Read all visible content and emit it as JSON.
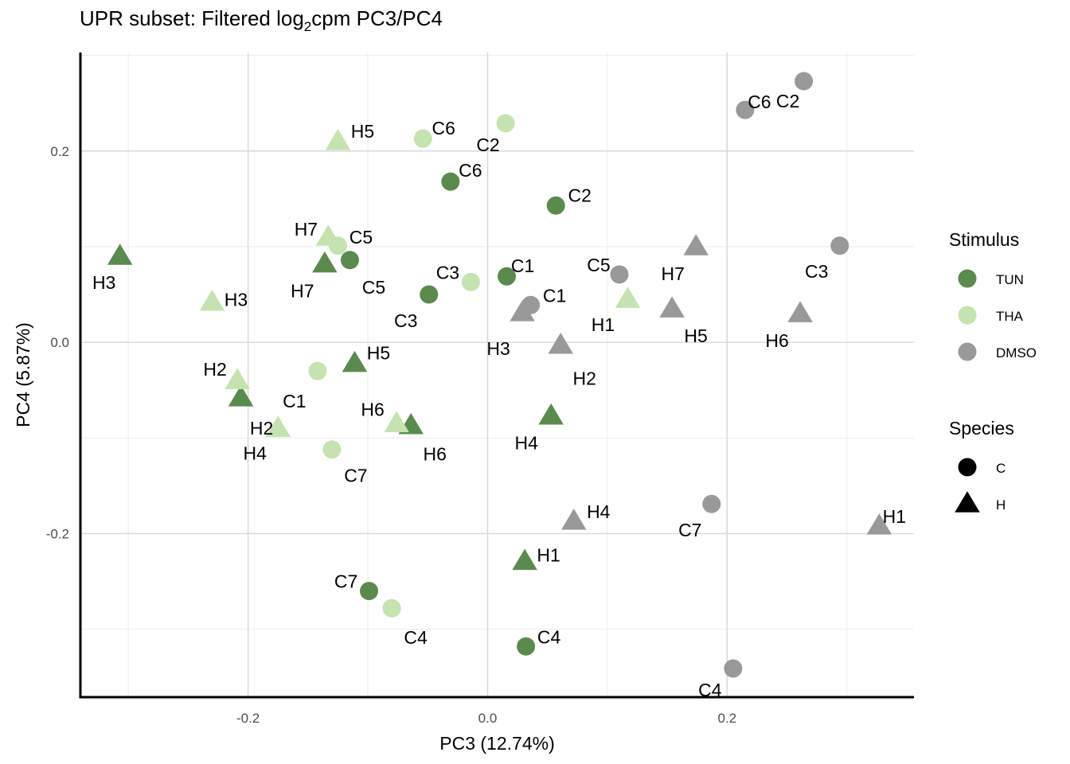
{
  "chart_data": {
    "type": "scatter",
    "title_parts": {
      "before": "UPR subset: Filtered log",
      "subscript": "2",
      "after": "cpm PC3/PC4"
    },
    "xlabel": "PC3 (12.74%)",
    "ylabel": "PC4 (5.87%)",
    "xlim": [
      -0.34,
      0.356
    ],
    "ylim": [
      -0.371,
      0.303
    ],
    "xticks": [
      -0.2,
      0.0,
      0.2
    ],
    "xtick_labels": [
      "-0.2",
      "0.0",
      "0.2"
    ],
    "yticks": [
      -0.2,
      0.0,
      0.2
    ],
    "ytick_labels": [
      "-0.2",
      "0.0",
      "0.2"
    ],
    "grid": true,
    "legends": {
      "stimulus": {
        "title": "Stimulus",
        "entries": [
          {
            "name": "TUN",
            "color": "#5b8a4e"
          },
          {
            "name": "THA",
            "color": "#c5e3b0"
          },
          {
            "name": "DMSO",
            "color": "#999999"
          }
        ]
      },
      "species": {
        "title": "Species",
        "entries": [
          {
            "name": "C",
            "shape": "circle"
          },
          {
            "name": "H",
            "shape": "triangle"
          }
        ]
      },
      "placement": "right"
    },
    "points": [
      {
        "label": "H3",
        "stimulus": "TUN",
        "species": "H",
        "x": -0.307,
        "y": 0.09
      },
      {
        "label": "H7",
        "stimulus": "TUN",
        "species": "H",
        "x": -0.136,
        "y": 0.082
      },
      {
        "label": "C5",
        "stimulus": "TUN",
        "species": "C",
        "x": -0.115,
        "y": 0.086
      },
      {
        "label": "C6",
        "stimulus": "TUN",
        "species": "C",
        "x": -0.031,
        "y": 0.168
      },
      {
        "label": "C2",
        "stimulus": "TUN",
        "species": "C",
        "x": 0.057,
        "y": 0.143
      },
      {
        "label": "C3",
        "stimulus": "TUN",
        "species": "C",
        "x": -0.049,
        "y": 0.05
      },
      {
        "label": "C1",
        "stimulus": "TUN",
        "species": "C",
        "x": 0.016,
        "y": 0.069
      },
      {
        "label": "H5",
        "stimulus": "TUN",
        "species": "H",
        "x": -0.111,
        "y": -0.022
      },
      {
        "label": "H2",
        "stimulus": "TUN",
        "species": "H",
        "x": -0.206,
        "y": -0.058
      },
      {
        "label": "H6",
        "stimulus": "TUN",
        "species": "H",
        "x": -0.064,
        "y": -0.087
      },
      {
        "label": "H4",
        "stimulus": "TUN",
        "species": "H",
        "x": 0.053,
        "y": -0.077
      },
      {
        "label": "H1",
        "stimulus": "TUN",
        "species": "H",
        "x": 0.031,
        "y": -0.229
      },
      {
        "label": "C7",
        "stimulus": "TUN",
        "species": "C",
        "x": -0.099,
        "y": -0.26
      },
      {
        "label": "C4",
        "stimulus": "TUN",
        "species": "C",
        "x": 0.032,
        "y": -0.318
      },
      {
        "label": "H5",
        "stimulus": "THA",
        "species": "H",
        "x": -0.125,
        "y": 0.21
      },
      {
        "label": "C6",
        "stimulus": "THA",
        "species": "C",
        "x": -0.054,
        "y": 0.213
      },
      {
        "label": "C2",
        "stimulus": "THA",
        "species": "C",
        "x": 0.015,
        "y": 0.229
      },
      {
        "label": "H7",
        "stimulus": "THA",
        "species": "H",
        "x": -0.133,
        "y": 0.11
      },
      {
        "label": "C5",
        "stimulus": "THA",
        "species": "C",
        "x": -0.125,
        "y": 0.101
      },
      {
        "label": "C3",
        "stimulus": "THA",
        "species": "C",
        "x": -0.014,
        "y": 0.063
      },
      {
        "label": "H3",
        "stimulus": "THA",
        "species": "H",
        "x": -0.23,
        "y": 0.042
      },
      {
        "label": "H1",
        "stimulus": "THA",
        "species": "H",
        "x": 0.117,
        "y": 0.045
      },
      {
        "label": "C1",
        "stimulus": "THA",
        "species": "C",
        "x": -0.142,
        "y": -0.03
      },
      {
        "label": "H2",
        "stimulus": "THA",
        "species": "H",
        "x": -0.209,
        "y": -0.04
      },
      {
        "label": "H6",
        "stimulus": "THA",
        "species": "H",
        "x": -0.076,
        "y": -0.085
      },
      {
        "label": "H4",
        "stimulus": "THA",
        "species": "H",
        "x": -0.175,
        "y": -0.09
      },
      {
        "label": "C7",
        "stimulus": "THA",
        "species": "C",
        "x": -0.13,
        "y": -0.112
      },
      {
        "label": "C4",
        "stimulus": "THA",
        "species": "C",
        "x": -0.08,
        "y": -0.278
      },
      {
        "label": "C6",
        "stimulus": "DMSO",
        "species": "C",
        "x": 0.215,
        "y": 0.243
      },
      {
        "label": "C2",
        "stimulus": "DMSO",
        "species": "C",
        "x": 0.264,
        "y": 0.273
      },
      {
        "label": "C3",
        "stimulus": "DMSO",
        "species": "C",
        "x": 0.294,
        "y": 0.101
      },
      {
        "label": "H7",
        "stimulus": "DMSO",
        "species": "H",
        "x": 0.174,
        "y": 0.1
      },
      {
        "label": "C5",
        "stimulus": "DMSO",
        "species": "C",
        "x": 0.11,
        "y": 0.071
      },
      {
        "label": "C1",
        "stimulus": "DMSO",
        "species": "C",
        "x": 0.036,
        "y": 0.039
      },
      {
        "label": "H3",
        "stimulus": "DMSO",
        "species": "H",
        "x": 0.029,
        "y": 0.031
      },
      {
        "label": "H5",
        "stimulus": "DMSO",
        "species": "H",
        "x": 0.154,
        "y": 0.035
      },
      {
        "label": "H6",
        "stimulus": "DMSO",
        "species": "H",
        "x": 0.261,
        "y": 0.03
      },
      {
        "label": "H2",
        "stimulus": "DMSO",
        "species": "H",
        "x": 0.061,
        "y": -0.003
      },
      {
        "label": "C7",
        "stimulus": "DMSO",
        "species": "C",
        "x": 0.187,
        "y": -0.169
      },
      {
        "label": "H4",
        "stimulus": "DMSO",
        "species": "H",
        "x": 0.072,
        "y": -0.187
      },
      {
        "label": "H1",
        "stimulus": "DMSO",
        "species": "H",
        "x": 0.327,
        "y": -0.192
      },
      {
        "label": "C4",
        "stimulus": "DMSO",
        "species": "C",
        "x": 0.205,
        "y": -0.341
      }
    ]
  }
}
